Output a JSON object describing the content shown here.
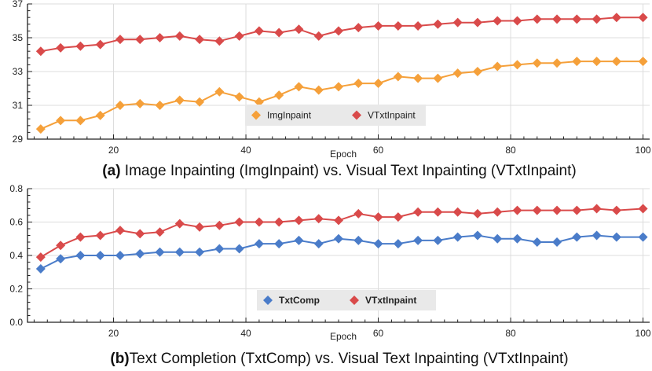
{
  "chart_data": [
    {
      "type": "line",
      "caption_prefix": "(a)",
      "caption_text": " Image Inpainting (ImgInpaint) vs. Visual Text Inpainting (VTxtInpaint)",
      "xlabel": "Epoch",
      "ylabel": "",
      "xlim": [
        7,
        101
      ],
      "ylim": [
        29,
        37
      ],
      "xticks": [
        20,
        40,
        60,
        80,
        100
      ],
      "yticks": [
        29,
        31,
        33,
        35,
        37
      ],
      "legend_position": "lower-center",
      "legend_bold": false,
      "x": [
        9,
        12,
        15,
        18,
        21,
        24,
        27,
        30,
        33,
        36,
        39,
        42,
        45,
        48,
        51,
        54,
        57,
        60,
        63,
        66,
        69,
        72,
        75,
        78,
        81,
        84,
        87,
        90,
        93,
        96,
        100
      ],
      "series": [
        {
          "name": "ImgInpaint",
          "color": "#F5A03A",
          "values": [
            29.6,
            30.1,
            30.1,
            30.4,
            31.0,
            31.1,
            31.0,
            31.3,
            31.2,
            31.8,
            31.5,
            31.2,
            31.6,
            32.1,
            31.9,
            32.1,
            32.3,
            32.3,
            32.7,
            32.6,
            32.6,
            32.9,
            33.0,
            33.3,
            33.4,
            33.5,
            33.5,
            33.6,
            33.6,
            33.6,
            33.6
          ]
        },
        {
          "name": "VTxtInpaint",
          "color": "#D94A4A",
          "values": [
            34.2,
            34.4,
            34.5,
            34.6,
            34.9,
            34.9,
            35.0,
            35.1,
            34.9,
            34.8,
            35.1,
            35.4,
            35.3,
            35.5,
            35.1,
            35.4,
            35.6,
            35.7,
            35.7,
            35.7,
            35.8,
            35.9,
            35.9,
            36.0,
            36.0,
            36.1,
            36.1,
            36.1,
            36.1,
            36.2,
            36.2
          ]
        }
      ]
    },
    {
      "type": "line",
      "caption_prefix": "(b)",
      "caption_text": "Text Completion (TxtComp) vs. Visual Text Inpainting (VTxtInpaint)",
      "xlabel": "Epoch",
      "ylabel": "",
      "xlim": [
        7,
        101
      ],
      "ylim": [
        0.0,
        0.8
      ],
      "xticks": [
        20,
        40,
        60,
        80,
        100
      ],
      "yticks": [
        0.0,
        0.2,
        0.4,
        0.6,
        0.8
      ],
      "legend_position": "lower-center",
      "legend_bold": true,
      "x": [
        9,
        12,
        15,
        18,
        21,
        24,
        27,
        30,
        33,
        36,
        39,
        42,
        45,
        48,
        51,
        54,
        57,
        60,
        63,
        66,
        69,
        72,
        75,
        78,
        81,
        84,
        87,
        90,
        93,
        96,
        100
      ],
      "series": [
        {
          "name": "TxtComp",
          "color": "#4A7CC9",
          "values": [
            0.32,
            0.38,
            0.4,
            0.4,
            0.4,
            0.41,
            0.42,
            0.42,
            0.42,
            0.44,
            0.44,
            0.47,
            0.47,
            0.49,
            0.47,
            0.5,
            0.49,
            0.47,
            0.47,
            0.49,
            0.49,
            0.51,
            0.52,
            0.5,
            0.5,
            0.48,
            0.48,
            0.51,
            0.52,
            0.51,
            0.51
          ]
        },
        {
          "name": "VTxtInpaint",
          "color": "#D94A4A",
          "values": [
            0.39,
            0.46,
            0.51,
            0.52,
            0.55,
            0.53,
            0.54,
            0.59,
            0.57,
            0.58,
            0.6,
            0.6,
            0.6,
            0.61,
            0.62,
            0.61,
            0.65,
            0.63,
            0.63,
            0.66,
            0.66,
            0.66,
            0.65,
            0.66,
            0.67,
            0.67,
            0.67,
            0.67,
            0.68,
            0.67,
            0.68
          ]
        }
      ]
    }
  ]
}
